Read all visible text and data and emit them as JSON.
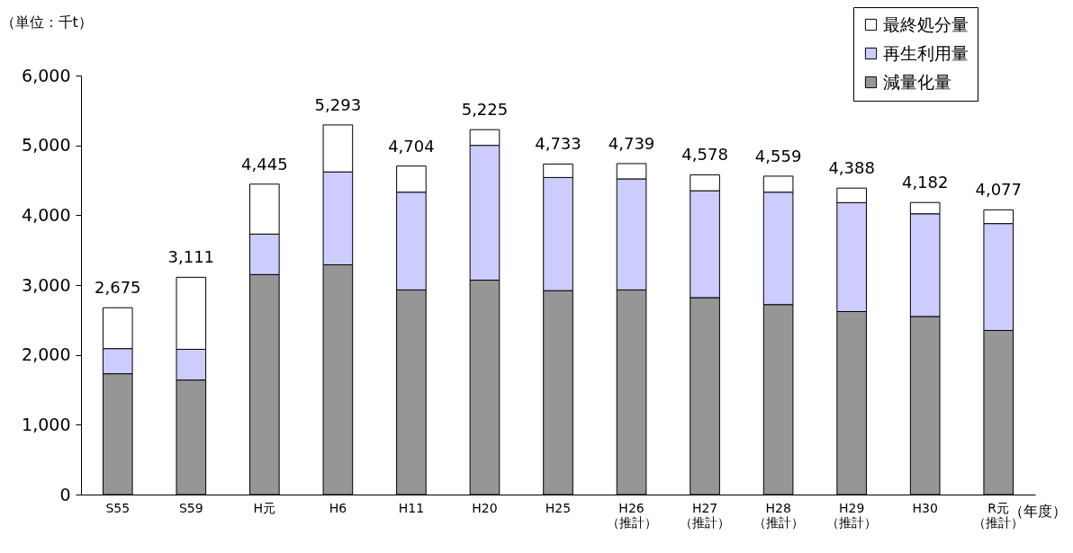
{
  "chart_data": {
    "type": "bar",
    "stacked": true,
    "ylabel": "（単位：千t）",
    "xlabel": "（年度）",
    "categories": [
      "S55",
      "S59",
      "H元",
      "H6",
      "H11",
      "H20",
      "H25",
      "H26（推計）",
      "H27（推計）",
      "H28（推計）",
      "H29（推計）",
      "H30",
      "R元（推計）"
    ],
    "series": [
      {
        "name": "減量化量",
        "color": "#969696",
        "values": [
          1730,
          1640,
          3150,
          3290,
          2930,
          3070,
          2920,
          2930,
          2820,
          2720,
          2620,
          2550,
          2350
        ]
      },
      {
        "name": "再生利用量",
        "color": "#ccccff",
        "values": [
          360,
          440,
          580,
          1330,
          1400,
          1930,
          1620,
          1590,
          1530,
          1610,
          1560,
          1470,
          1530
        ]
      },
      {
        "name": "最終処分量",
        "color": "#ffffff",
        "values": [
          585,
          1031,
          715,
          673,
          374,
          225,
          193,
          219,
          228,
          229,
          208,
          162,
          197
        ]
      }
    ],
    "totals": [
      "2,675",
      "3,111",
      "4,445",
      "5,293",
      "4,704",
      "5,225",
      "4,733",
      "4,739",
      "4,578",
      "4,559",
      "4,388",
      "4,182",
      "4,077"
    ],
    "ylim": [
      0,
      6000
    ],
    "yticks": [
      0,
      {
        "value": 1000,
        "label": "1,000"
      },
      {
        "value": 2000,
        "label": "2,000"
      },
      {
        "value": 3000,
        "label": "3,000"
      },
      {
        "value": 4000,
        "label": "4,000"
      },
      {
        "value": 5000,
        "label": "5,000"
      },
      {
        "value": 6000,
        "label": "6,000"
      }
    ],
    "legend": "top right"
  }
}
